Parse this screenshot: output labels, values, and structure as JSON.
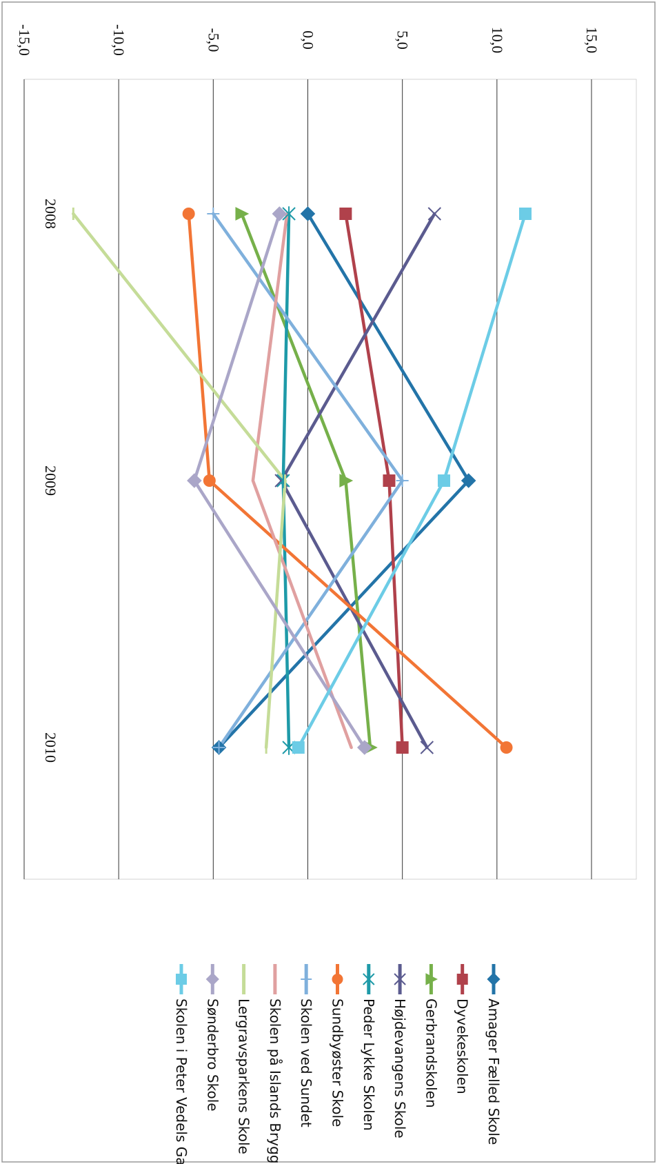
{
  "chart_data": {
    "type": "line",
    "orientation": "rotated-90-clockwise",
    "x_categories": [
      "2008",
      "2009",
      "2010"
    ],
    "ylim": [
      -15,
      15
    ],
    "y_ticks": [
      {
        "value": -15,
        "label": "-15,0"
      },
      {
        "value": -10,
        "label": "-10,0"
      },
      {
        "value": -5,
        "label": "-5,0"
      },
      {
        "value": 0,
        "label": "0,0"
      },
      {
        "value": 5,
        "label": "5,0"
      },
      {
        "value": 10,
        "label": "10,0"
      },
      {
        "value": 15,
        "label": "15,0"
      }
    ],
    "grid": true,
    "legend_position": "bottom",
    "series": [
      {
        "name": "Amager Fælled Skole",
        "color": "#2374a8",
        "marker": "diamond",
        "values": [
          0.0,
          8.5,
          -4.7
        ]
      },
      {
        "name": "Dyvekeskolen",
        "color": "#b0414b",
        "marker": "square",
        "values": [
          2.0,
          4.3,
          5.0
        ]
      },
      {
        "name": "Gerbrandskolen",
        "color": "#76b04a",
        "marker": "triangle",
        "values": [
          -3.5,
          2.0,
          3.3
        ]
      },
      {
        "name": "Højdevangens Skole",
        "color": "#5b5b8f",
        "marker": "x",
        "values": [
          6.7,
          -1.4,
          6.3
        ]
      },
      {
        "name": "Peder Lykke Skolen",
        "color": "#1e9aa8",
        "marker": "asterisk",
        "values": [
          -1.0,
          -1.3,
          -1.0
        ]
      },
      {
        "name": "Sundbyøster Skole",
        "color": "#f27535",
        "marker": "circle",
        "values": [
          -6.3,
          -5.2,
          10.5
        ]
      },
      {
        "name": "Skolen ved Sundet",
        "color": "#7fb0dc",
        "marker": "plus",
        "values": [
          -5.0,
          5.0,
          -4.7
        ]
      },
      {
        "name": "Skolen på Islands Brygge",
        "color": "#e0a0a0",
        "marker": "none",
        "values": [
          -1.1,
          -2.9,
          2.3
        ]
      },
      {
        "name": "Lergravsparkens Skole",
        "color": "#c5dc98",
        "marker": "dash",
        "values": [
          -12.4,
          -1.2,
          -2.2
        ]
      },
      {
        "name": "Sønderbro Skole",
        "color": "#aaa6c8",
        "marker": "diamond",
        "values": [
          -1.5,
          -6.0,
          3.0
        ]
      },
      {
        "name": "Skolen i Peter Vedels Gade",
        "color": "#6ccce6",
        "marker": "square",
        "values": [
          11.5,
          7.2,
          -0.5
        ]
      }
    ]
  }
}
